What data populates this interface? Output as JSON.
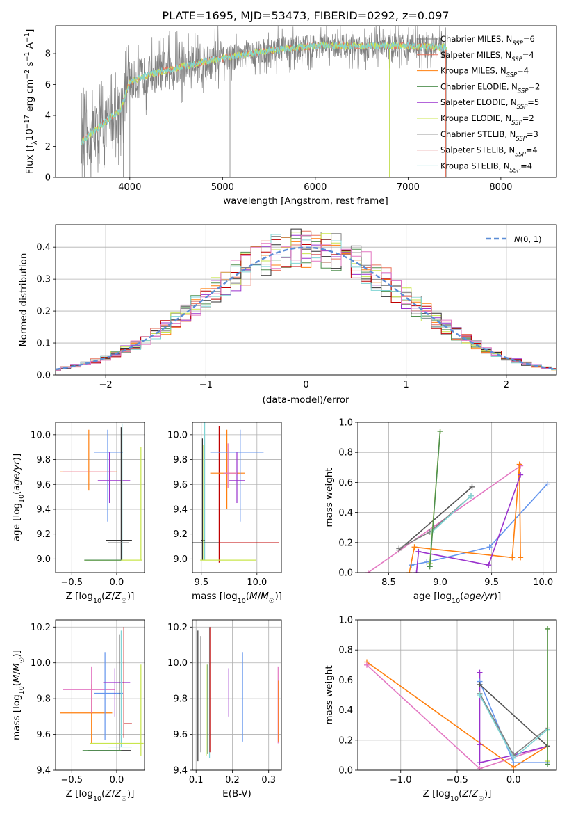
{
  "title": "PLATE=1695, MJD=53473, FIBERID=0292, z=0.097",
  "colors": {
    "chabrier_miles": "#808080",
    "salpeter_miles": "#e8735c",
    "kroupa_miles": "#ff7f0e",
    "chabrier_elodie": "#4f8f4f",
    "salpeter_elodie": "#9a32cd",
    "kroupa_elodie": "#c8e64c",
    "chabrier_stelib": "#333333",
    "salpeter_stelib": "#c00000",
    "kroupa_stelib": "#7fd4d4",
    "cornflower": "#6495ed",
    "pink": "#e377c2",
    "dkgray": "#555555"
  },
  "chart_data": [
    {
      "type": "line",
      "title": "PLATE=1695, MJD=53473, FIBERID=0292, z=0.097",
      "xlabel": "wavelength [Angstrom, rest frame]",
      "ylabel": "Flux [f_λ 10^-17 erg cm^-2 s^-1 A^-1]",
      "xlim": [
        3200,
        8600
      ],
      "ylim": [
        0,
        9.8
      ],
      "xticks": [
        "4000",
        "5000",
        "6000",
        "7000",
        "8000"
      ],
      "yticks": [
        "0",
        "2",
        "4",
        "6",
        "8"
      ],
      "legend_position": "upper-right",
      "legend": [
        {
          "name": "Chabrier MILES, N_SSP=6",
          "label": "Chabrier MILES, N",
          "sub": "SSP",
          "tail": "=6",
          "color": "#808080"
        },
        {
          "name": "Salpeter MILES, N_SSP=4",
          "label": "Salpeter MILES, N",
          "sub": "SSP",
          "tail": "=4",
          "color": "#e8735c"
        },
        {
          "name": "Kroupa MILES, N_SSP=4",
          "label": "Kroupa MILES, N",
          "sub": "SSP",
          "tail": "=4",
          "color": "#ff7f0e"
        },
        {
          "name": "Chabrier ELODIE, N_SSP=2",
          "label": "Chabrier ELODIE, N",
          "sub": "SSP",
          "tail": "=2",
          "color": "#4f8f4f"
        },
        {
          "name": "Salpeter ELODIE, N_SSP=5",
          "label": "Salpeter ELODIE, N",
          "sub": "SSP",
          "tail": "=5",
          "color": "#9a32cd"
        },
        {
          "name": "Kroupa ELODIE, N_SSP=2",
          "label": "Kroupa ELODIE, N",
          "sub": "SSP",
          "tail": "=2",
          "color": "#c8e64c"
        },
        {
          "name": "Chabrier STELIB, N_SSP=3",
          "label": "Chabrier STELIB, N",
          "sub": "SSP",
          "tail": "=3",
          "color": "#333333"
        },
        {
          "name": "Salpeter STELIB, N_SSP=4",
          "label": "Salpeter STELIB, N",
          "sub": "SSP",
          "tail": "=4",
          "color": "#c00000"
        },
        {
          "name": "Kroupa STELIB, N_SSP=4",
          "label": "Kroupa STELIB, N",
          "sub": "SSP",
          "tail": "=4",
          "color": "#7fd4d4"
        }
      ],
      "model_continuum": {
        "x": [
          3500,
          3700,
          3900,
          4000,
          4300,
          4600,
          5000,
          5500,
          6000,
          6500,
          7000,
          7400
        ],
        "y": [
          2.4,
          3.4,
          4.4,
          6.2,
          6.8,
          7.2,
          7.7,
          8.2,
          8.5,
          8.5,
          8.5,
          8.4
        ]
      }
    },
    {
      "type": "step",
      "xlabel": "(data-model)/error",
      "ylabel": "Normed distribution",
      "xlim": [
        -2.5,
        2.5
      ],
      "ylim": [
        0,
        0.47
      ],
      "xticks": [
        "−2",
        "−1",
        "0",
        "1",
        "2"
      ],
      "yticks": [
        "0.0",
        "0.1",
        "0.2",
        "0.3",
        "0.4"
      ],
      "legend": "N(0,1)",
      "legend_position": "upper-right",
      "gaussian": {
        "mean": 0,
        "sigma": 1
      }
    },
    {
      "type": "scatter",
      "xlabel": "Z [log10(Z/Z☉)]",
      "ylabel": "age  [log10(age/yr)]",
      "xlim": [
        -0.68,
        0.31
      ],
      "ylim": [
        8.89,
        10.1
      ],
      "xticks": [
        "−0.5",
        "0.0"
      ],
      "yticks": [
        "9.0",
        "9.2",
        "9.4",
        "9.6",
        "9.8",
        "10.0"
      ],
      "points": [
        {
          "x": -0.31,
          "y": 9.7,
          "xlo": -0.63,
          "xhi": 0.0,
          "ylo": 9.55,
          "yhi": 10.04,
          "color": "#ff7f0e"
        },
        {
          "x": -0.31,
          "y": 9.7,
          "xlo": -0.6,
          "xhi": -0.02,
          "ylo": 9.7,
          "yhi": 9.7,
          "color": "#e377c2"
        },
        {
          "x": -0.1,
          "y": 9.86,
          "xlo": -0.25,
          "xhi": 0.07,
          "ylo": 9.3,
          "yhi": 10.04,
          "color": "#6495ed"
        },
        {
          "x": -0.08,
          "y": 9.63,
          "xlo": -0.21,
          "xhi": 0.15,
          "ylo": 9.45,
          "yhi": 9.86,
          "color": "#9a32cd"
        },
        {
          "x": 0.06,
          "y": 9.15,
          "xlo": -0.11,
          "xhi": 0.16,
          "ylo": 8.99,
          "yhi": 10.09,
          "color": "#7fd4d4"
        },
        {
          "x": 0.05,
          "y": 9.15,
          "xlo": -0.12,
          "xhi": 0.17,
          "ylo": 8.99,
          "yhi": 10.06,
          "color": "#333333"
        },
        {
          "x": 0.05,
          "y": 9.13,
          "xlo": -0.1,
          "xhi": 0.14,
          "ylo": 9.13,
          "yhi": 9.13,
          "color": "#808080"
        },
        {
          "x": 0.27,
          "y": 8.99,
          "xlo": -0.36,
          "xhi": 0.28,
          "ylo": 8.99,
          "yhi": 9.9,
          "color": "#c8e64c"
        },
        {
          "x": -0.1,
          "y": 8.99,
          "xlo": -0.36,
          "xhi": 0.05,
          "ylo": 8.99,
          "yhi": 8.99,
          "color": "#4f8f4f"
        }
      ]
    },
    {
      "type": "scatter",
      "xlabel": "mass [log10(M/M☉)]",
      "ylabel": "",
      "xlim": [
        9.42,
        10.22
      ],
      "ylim": [
        8.89,
        10.1
      ],
      "xticks": [
        "9.5",
        "10.0"
      ],
      "yticks": [
        "9.0",
        "9.2",
        "9.4",
        "9.6",
        "9.8",
        "10.0"
      ],
      "points": [
        {
          "x": 9.53,
          "y": 9.86,
          "xlo": 9.53,
          "xhi": 9.53,
          "ylo": 8.99,
          "yhi": 10.1,
          "color": "#7fd4d4"
        },
        {
          "x": 9.51,
          "y": 9.15,
          "xlo": 9.5,
          "xhi": 9.53,
          "ylo": 8.99,
          "yhi": 9.97,
          "color": "#333333"
        },
        {
          "x": 9.5,
          "y": 9.13,
          "xlo": 9.4,
          "xhi": 10.16,
          "ylo": 9.13,
          "yhi": 9.13,
          "color": "#333333"
        },
        {
          "x": 9.66,
          "y": 9.13,
          "xlo": 9.66,
          "xhi": 10.2,
          "ylo": 8.97,
          "yhi": 10.07,
          "color": "#c00000"
        },
        {
          "x": 9.73,
          "y": 9.69,
          "xlo": 9.58,
          "xhi": 9.89,
          "ylo": 9.4,
          "yhi": 10.04,
          "color": "#ff7f0e"
        },
        {
          "x": 9.85,
          "y": 9.86,
          "xlo": 9.58,
          "xhi": 10.06,
          "ylo": 9.3,
          "yhi": 10.04,
          "color": "#6495ed"
        },
        {
          "x": 9.82,
          "y": 9.63,
          "xlo": 9.75,
          "xhi": 9.89,
          "ylo": 9.45,
          "yhi": 9.86,
          "color": "#9a32cd"
        },
        {
          "x": 9.74,
          "y": 9.69,
          "xlo": 9.7,
          "xhi": 9.82,
          "ylo": 9.57,
          "yhi": 9.93,
          "color": "#e377c2"
        },
        {
          "x": 9.52,
          "y": 8.99,
          "xlo": 9.49,
          "xhi": 9.99,
          "ylo": 8.99,
          "yhi": 9.92,
          "color": "#c8e64c"
        }
      ]
    },
    {
      "type": "line",
      "xlabel": "age  [log10(age/yr)]",
      "ylabel": "mass weight",
      "xlim": [
        8.2,
        10.13
      ],
      "ylim": [
        0,
        1.0
      ],
      "xticks": [
        "8.5",
        "9.0",
        "9.5",
        "10.0"
      ],
      "yticks": [
        "0.0",
        "0.2",
        "0.4",
        "0.6",
        "0.8",
        "1.0"
      ],
      "series": [
        {
          "color": "#e377c2",
          "x": [
            8.3,
            9.78
          ],
          "y": [
            0.0,
            0.71
          ]
        },
        {
          "color": "#6495ed",
          "x": [
            8.72,
            8.87,
            9.48,
            10.04
          ],
          "y": [
            0.05,
            0.07,
            0.17,
            0.59
          ]
        },
        {
          "color": "#ff7f0e",
          "x": [
            8.7,
            8.75,
            9.7,
            9.77,
            9.78
          ],
          "y": [
            0.0,
            0.17,
            0.1,
            0.72,
            0.1
          ]
        },
        {
          "color": "#9a32cd",
          "x": [
            8.77,
            8.79,
            9.47,
            9.78
          ],
          "y": [
            0.0,
            0.14,
            0.05,
            0.65
          ]
        },
        {
          "color": "#555555",
          "x": [
            8.6,
            9.31
          ],
          "y": [
            0.15,
            0.57
          ]
        },
        {
          "color": "#808080",
          "x": [
            8.6,
            8.9,
            9.3
          ],
          "y": [
            0.16,
            0.27,
            0.51
          ]
        },
        {
          "color": "#7fd4d4",
          "x": [
            8.9,
            8.92,
            9.3
          ],
          "y": [
            0.06,
            0.27,
            0.51
          ]
        },
        {
          "color": "#c8e64c",
          "x": [
            8.9,
            9.0
          ],
          "y": [
            0.06,
            0.94
          ]
        },
        {
          "color": "#4f8f4f",
          "x": [
            8.9,
            9.0
          ],
          "y": [
            0.04,
            0.94
          ]
        }
      ]
    },
    {
      "type": "scatter",
      "xlabel": "Z [log10(Z/Z☉)]",
      "ylabel": "mass [log10(M/M☉)]",
      "xlim": [
        -0.68,
        0.31
      ],
      "ylim": [
        9.4,
        10.24
      ],
      "xticks": [
        "−0.5",
        "0.0"
      ],
      "yticks": [
        "9.4",
        "9.6",
        "9.8",
        "10.0",
        "10.2"
      ],
      "points": [
        {
          "x": -0.31,
          "y": 9.85,
          "xlo": -0.6,
          "xhi": -0.02,
          "ylo": 9.85,
          "yhi": 9.85,
          "color": "#e377c2"
        },
        {
          "x": -0.28,
          "y": 9.72,
          "xlo": -0.63,
          "xhi": -0.05,
          "ylo": 9.55,
          "yhi": 9.88,
          "color": "#ff7f0e"
        },
        {
          "x": -0.28,
          "y": 9.85,
          "xlo": -0.28,
          "xhi": -0.28,
          "ylo": 9.72,
          "yhi": 9.98,
          "color": "#e377c2"
        },
        {
          "x": -0.13,
          "y": 9.83,
          "xlo": -0.25,
          "xhi": 0.07,
          "ylo": 9.57,
          "yhi": 10.06,
          "color": "#6495ed"
        },
        {
          "x": -0.02,
          "y": 9.89,
          "xlo": -0.15,
          "xhi": 0.15,
          "ylo": 9.7,
          "yhi": 9.97,
          "color": "#9a32cd"
        },
        {
          "x": 0.08,
          "y": 9.66,
          "xlo": 0.08,
          "xhi": 0.17,
          "ylo": 9.58,
          "yhi": 10.2,
          "color": "#c00000"
        },
        {
          "x": 0.05,
          "y": 9.53,
          "xlo": -0.1,
          "xhi": 0.17,
          "ylo": 9.53,
          "yhi": 10.18,
          "color": "#7fd4d4"
        },
        {
          "x": 0.03,
          "y": 9.51,
          "xlo": -0.32,
          "xhi": 0.16,
          "ylo": 9.51,
          "yhi": 10.16,
          "color": "#333333"
        },
        {
          "x": 0.27,
          "y": 9.55,
          "xlo": -0.3,
          "xhi": 0.3,
          "ylo": 9.48,
          "yhi": 9.99,
          "color": "#c8e64c"
        },
        {
          "x": -0.1,
          "y": 9.51,
          "xlo": -0.38,
          "xhi": 0.05,
          "ylo": 9.51,
          "yhi": 9.51,
          "color": "#4f8f4f"
        }
      ]
    },
    {
      "type": "errorbar",
      "xlabel": "E(B-V)",
      "ylabel": "",
      "xlim": [
        0.09,
        0.335
      ],
      "ylim": [
        9.4,
        10.24
      ],
      "xticks": [
        "0.1",
        "0.2",
        "0.3"
      ],
      "yticks": [
        "9.4",
        "9.6",
        "9.8",
        "10.0",
        "10.2"
      ],
      "bars": [
        {
          "x": 0.105,
          "ylo": 9.45,
          "yhi": 10.18,
          "color": "#333333"
        },
        {
          "x": 0.113,
          "ylo": 9.5,
          "yhi": 10.15,
          "color": "#808080"
        },
        {
          "x": 0.128,
          "ylo": 9.48,
          "yhi": 9.99,
          "color": "#c8e64c"
        },
        {
          "x": 0.132,
          "ylo": 9.49,
          "yhi": 9.99,
          "color": "#4f8f4f"
        },
        {
          "x": 0.137,
          "ylo": 9.47,
          "yhi": 10.2,
          "color": "#7fd4d4"
        },
        {
          "x": 0.138,
          "ylo": 9.5,
          "yhi": 10.2,
          "color": "#c00000"
        },
        {
          "x": 0.19,
          "ylo": 9.7,
          "yhi": 9.97,
          "color": "#9a32cd"
        },
        {
          "x": 0.228,
          "ylo": 9.56,
          "yhi": 10.06,
          "color": "#6495ed"
        },
        {
          "x": 0.326,
          "ylo": 9.55,
          "yhi": 9.98,
          "color": "#e377c2"
        },
        {
          "x": 0.327,
          "ylo": 9.56,
          "yhi": 9.9,
          "color": "#ff7f0e"
        }
      ]
    },
    {
      "type": "line",
      "xlabel": "Z [log10(Z/Z☉)]",
      "ylabel": "mass weight",
      "xlim": [
        -1.38,
        0.38
      ],
      "ylim": [
        0,
        1.0
      ],
      "xticks": [
        "−1.0",
        "−0.5",
        "0.0"
      ],
      "yticks": [
        "0.0",
        "0.2",
        "0.4",
        "0.6",
        "0.8",
        "1.0"
      ],
      "series": [
        {
          "color": "#ff7f0e",
          "x": [
            -1.3,
            0.0,
            0.3
          ],
          "y": [
            0.72,
            0.02,
            0.16
          ]
        },
        {
          "color": "#e377c2",
          "x": [
            -1.3,
            -0.3,
            0.3
          ],
          "y": [
            0.7,
            0.01,
            0.16
          ]
        },
        {
          "color": "#9a32cd",
          "x": [
            -0.3,
            -0.3,
            -0.3,
            0.0,
            0.3
          ],
          "y": [
            0.65,
            0.17,
            0.05,
            0.1,
            0.16
          ]
        },
        {
          "color": "#6495ed",
          "x": [
            -0.3,
            0.0,
            0.3
          ],
          "y": [
            0.59,
            0.05,
            0.05
          ]
        },
        {
          "color": "#555555",
          "x": [
            -0.3,
            0.3
          ],
          "y": [
            0.57,
            0.16
          ]
        },
        {
          "color": "#808080",
          "x": [
            -0.3,
            0.0,
            0.3
          ],
          "y": [
            0.51,
            0.1,
            0.28
          ]
        },
        {
          "color": "#7fd4d4",
          "x": [
            -0.3,
            0.0,
            0.3
          ],
          "y": [
            0.5,
            0.08,
            0.27
          ]
        },
        {
          "color": "#c8e64c",
          "x": [
            0.3,
            0.3
          ],
          "y": [
            0.06,
            0.94
          ]
        },
        {
          "color": "#4f8f4f",
          "x": [
            0.3,
            0.3
          ],
          "y": [
            0.04,
            0.94
          ]
        }
      ]
    }
  ]
}
